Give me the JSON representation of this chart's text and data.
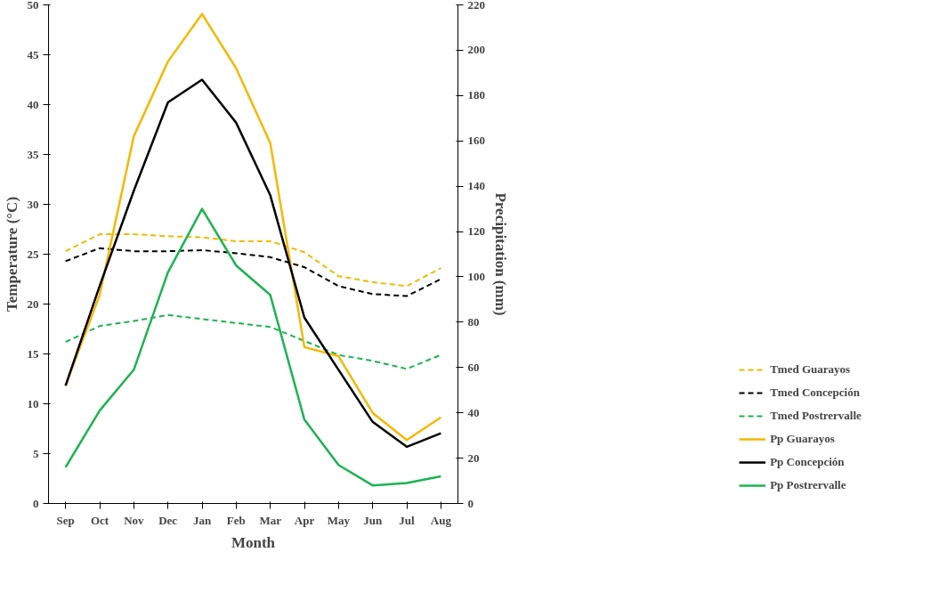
{
  "chart_data": {
    "type": "line",
    "xlabel": "Month",
    "ylabel": "Temperature (°C)",
    "y2label": "Precipitation (mm)",
    "categories": [
      "Sep",
      "Oct",
      "Nov",
      "Dec",
      "Jan",
      "Feb",
      "Mar",
      "Apr",
      "May",
      "Jun",
      "Jul",
      "Aug"
    ],
    "ylim": [
      0,
      50
    ],
    "yticks": [
      0,
      5,
      10,
      15,
      20,
      25,
      30,
      35,
      40,
      45,
      50
    ],
    "y2lim": [
      0,
      220
    ],
    "y2ticks": [
      0,
      20,
      40,
      60,
      80,
      100,
      120,
      140,
      160,
      180,
      200,
      220
    ],
    "grid": false,
    "legend": "right",
    "marker": "none",
    "series": [
      {
        "name": "Tmed Guarayos",
        "color": "#f5b800",
        "line_style": "dashed",
        "values": [
          25.3,
          27.0,
          27.0,
          26.8,
          26.7,
          26.3,
          26.3,
          25.2,
          22.8,
          22.2,
          21.8,
          23.6
        ]
      },
      {
        "name": "Tmed Concepción",
        "color": "#000000",
        "line_style": "dashed",
        "values": [
          24.3,
          25.6,
          25.3,
          25.3,
          25.4,
          25.1,
          24.7,
          23.7,
          21.8,
          21.0,
          20.8,
          22.5
        ]
      },
      {
        "name": "Tmed Postrervalle",
        "color": "#1db350",
        "line_style": "dashed",
        "values": [
          16.2,
          17.8,
          18.3,
          18.9,
          18.5,
          18.1,
          17.7,
          16.3,
          14.9,
          14.3,
          13.5,
          14.9
        ]
      },
      {
        "name": "Pp Guarayos",
        "color": "#f5b800",
        "line_style": "solid",
        "axis": "y2",
        "values": [
          52,
          92,
          162,
          195,
          216,
          192,
          159,
          69,
          65,
          40,
          28,
          38
        ]
      },
      {
        "name": "Pp Concepción",
        "color": "#000000",
        "line_style": "solid",
        "axis": "y2",
        "values": [
          52,
          96,
          138,
          177,
          187,
          168,
          136,
          82,
          59,
          36,
          25,
          31
        ]
      },
      {
        "name": "Pp Postrervalle",
        "color": "#1db350",
        "line_style": "solid",
        "axis": "y2",
        "values": [
          16,
          41,
          59,
          102,
          130,
          105,
          92,
          37,
          17,
          8,
          9,
          12
        ]
      }
    ]
  }
}
